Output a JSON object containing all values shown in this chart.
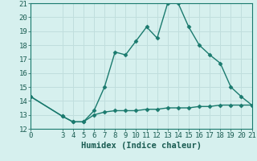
{
  "line1_x": [
    0,
    3,
    4,
    5,
    6,
    7,
    8,
    9,
    10,
    11,
    12,
    13,
    14,
    15,
    16,
    17,
    18,
    19,
    20,
    21
  ],
  "line1_y": [
    14.3,
    12.9,
    12.5,
    12.5,
    13.3,
    15.0,
    17.5,
    17.3,
    18.3,
    19.3,
    18.5,
    21.0,
    21.0,
    19.3,
    18.0,
    17.3,
    16.7,
    15.0,
    14.3,
    13.7
  ],
  "line2_x": [
    0,
    3,
    4,
    5,
    6,
    7,
    8,
    9,
    10,
    11,
    12,
    13,
    14,
    15,
    16,
    17,
    18,
    19,
    20,
    21
  ],
  "line2_y": [
    14.3,
    12.9,
    12.5,
    12.5,
    13.0,
    13.2,
    13.3,
    13.3,
    13.3,
    13.4,
    13.4,
    13.5,
    13.5,
    13.5,
    13.6,
    13.6,
    13.7,
    13.7,
    13.7,
    13.7
  ],
  "line_color": "#1a7a6e",
  "bg_color": "#d6f0ee",
  "grid_color": "#c0dedd",
  "xlabel": "Humidex (Indice chaleur)",
  "xlim": [
    0,
    21
  ],
  "ylim": [
    12,
    21
  ],
  "xticks": [
    0,
    3,
    4,
    5,
    6,
    7,
    8,
    9,
    10,
    11,
    12,
    13,
    14,
    15,
    16,
    17,
    18,
    19,
    20,
    21
  ],
  "yticks": [
    12,
    13,
    14,
    15,
    16,
    17,
    18,
    19,
    20,
    21
  ],
  "marker": "D",
  "markersize": 2.5,
  "linewidth": 1.0,
  "xlabel_fontsize": 7.5,
  "tick_fontsize": 6.5,
  "tick_color": "#1a5c52",
  "spine_color": "#1a7a6e"
}
